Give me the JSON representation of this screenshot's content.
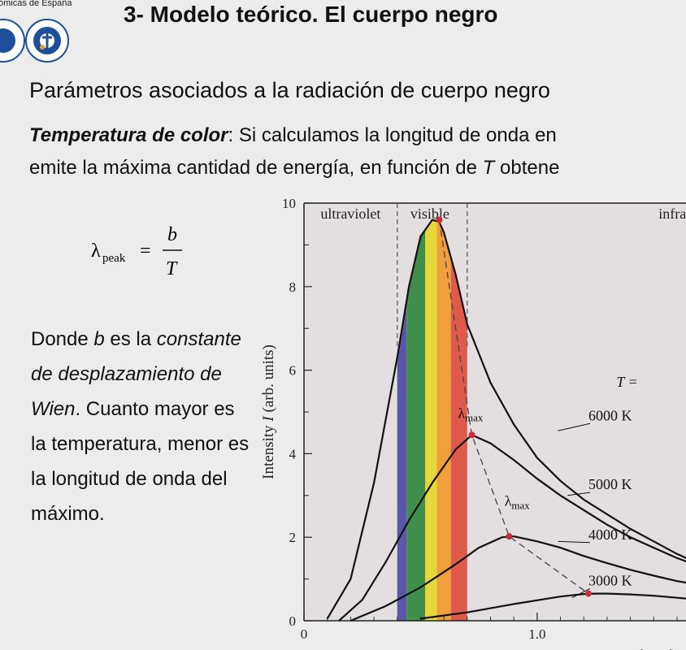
{
  "header": {
    "org_text": "ómicas de España",
    "title": "3- Modelo teórico. El cuerpo negro"
  },
  "subtitle": "Parámetros asociados a la radiación de cuerpo negro",
  "intro": {
    "term": "Temperatura de color",
    "line1_rest": ": Si calculamos la longitud de onda en",
    "line2_a": "emite la máxima cantidad de energía, en función de ",
    "line2_T": "T",
    "line2_b": " obtene"
  },
  "formula": {
    "lambda": "λ",
    "sub": "peak",
    "equals": "=",
    "numerator": "b",
    "denominator": "T"
  },
  "description": {
    "p1": "Donde ",
    "b": "b",
    "p2": " es la ",
    "italic": "constante de desplazamiento de Wien",
    "p3": ". Cuanto mayor es la temperatura, menor es la longitud de onda del máximo."
  },
  "chart_data": {
    "type": "line",
    "ylabel_prefix": "Intensity",
    "ylabel_var": "I",
    "ylabel_suffix": "(arb. units)",
    "xlabel": "Wavelength",
    "ylim": [
      0,
      10
    ],
    "xlim": [
      0,
      1.75
    ],
    "y_ticks": [
      "0",
      "2",
      "4",
      "6",
      "8",
      "10"
    ],
    "x_ticks": [
      "0",
      "1.0"
    ],
    "regions": [
      "ultraviolet",
      "visible",
      "infrared"
    ],
    "T_label": "T =",
    "lambda_max_label": "λ",
    "lambda_max_sub": "max",
    "series": [
      {
        "name": "6000 K",
        "x": [
          0.1,
          0.2,
          0.3,
          0.4,
          0.45,
          0.5,
          0.55,
          0.58,
          0.6,
          0.65,
          0.7,
          0.8,
          0.9,
          1.0,
          1.1,
          1.2,
          1.3,
          1.4,
          1.5,
          1.6,
          1.7,
          1.75
        ],
        "y": [
          0.05,
          1.0,
          3.3,
          6.3,
          8.0,
          9.2,
          9.6,
          9.55,
          9.3,
          8.3,
          7.1,
          5.7,
          4.7,
          3.9,
          3.35,
          2.9,
          2.55,
          2.2,
          1.9,
          1.6,
          1.35,
          1.2
        ]
      },
      {
        "name": "5000 K",
        "x": [
          0.15,
          0.25,
          0.35,
          0.45,
          0.55,
          0.65,
          0.72,
          0.8,
          0.9,
          1.0,
          1.1,
          1.2,
          1.3,
          1.4,
          1.5,
          1.6,
          1.7,
          1.75
        ],
        "y": [
          0.0,
          0.5,
          1.4,
          2.4,
          3.3,
          4.1,
          4.45,
          4.25,
          3.85,
          3.4,
          3.0,
          2.65,
          2.3,
          2.0,
          1.75,
          1.5,
          1.3,
          1.2
        ]
      },
      {
        "name": "4000 K",
        "x": [
          0.2,
          0.35,
          0.5,
          0.65,
          0.75,
          0.85,
          0.9,
          1.0,
          1.1,
          1.2,
          1.3,
          1.4,
          1.5,
          1.6,
          1.7,
          1.75
        ],
        "y": [
          0.0,
          0.35,
          0.8,
          1.35,
          1.75,
          2.0,
          2.02,
          1.9,
          1.75,
          1.55,
          1.38,
          1.22,
          1.08,
          0.95,
          0.85,
          0.8
        ]
      },
      {
        "name": "3000 K",
        "x": [
          0.5,
          0.7,
          0.9,
          1.1,
          1.2,
          1.25,
          1.3,
          1.4,
          1.5,
          1.6,
          1.7,
          1.75
        ],
        "y": [
          0.05,
          0.2,
          0.4,
          0.58,
          0.64,
          0.65,
          0.65,
          0.63,
          0.6,
          0.55,
          0.5,
          0.48
        ]
      }
    ],
    "peaks": [
      {
        "x": 0.58,
        "y": 9.6
      },
      {
        "x": 0.72,
        "y": 4.45
      },
      {
        "x": 0.88,
        "y": 2.02
      },
      {
        "x": 1.22,
        "y": 0.65
      }
    ],
    "visible_bands": [
      {
        "from": 0.4,
        "to": 0.44,
        "color": "#5b57a8"
      },
      {
        "from": 0.44,
        "to": 0.52,
        "color": "#3f8f4a"
      },
      {
        "from": 0.52,
        "to": 0.57,
        "color": "#e6d83a"
      },
      {
        "from": 0.57,
        "to": 0.63,
        "color": "#f0a03a"
      },
      {
        "from": 0.63,
        "to": 0.7,
        "color": "#df5a4a"
      }
    ],
    "colors": {
      "axis": "#222222",
      "curve": "#111111",
      "peak": "#d0293a",
      "background": "#e3dfe1"
    }
  }
}
